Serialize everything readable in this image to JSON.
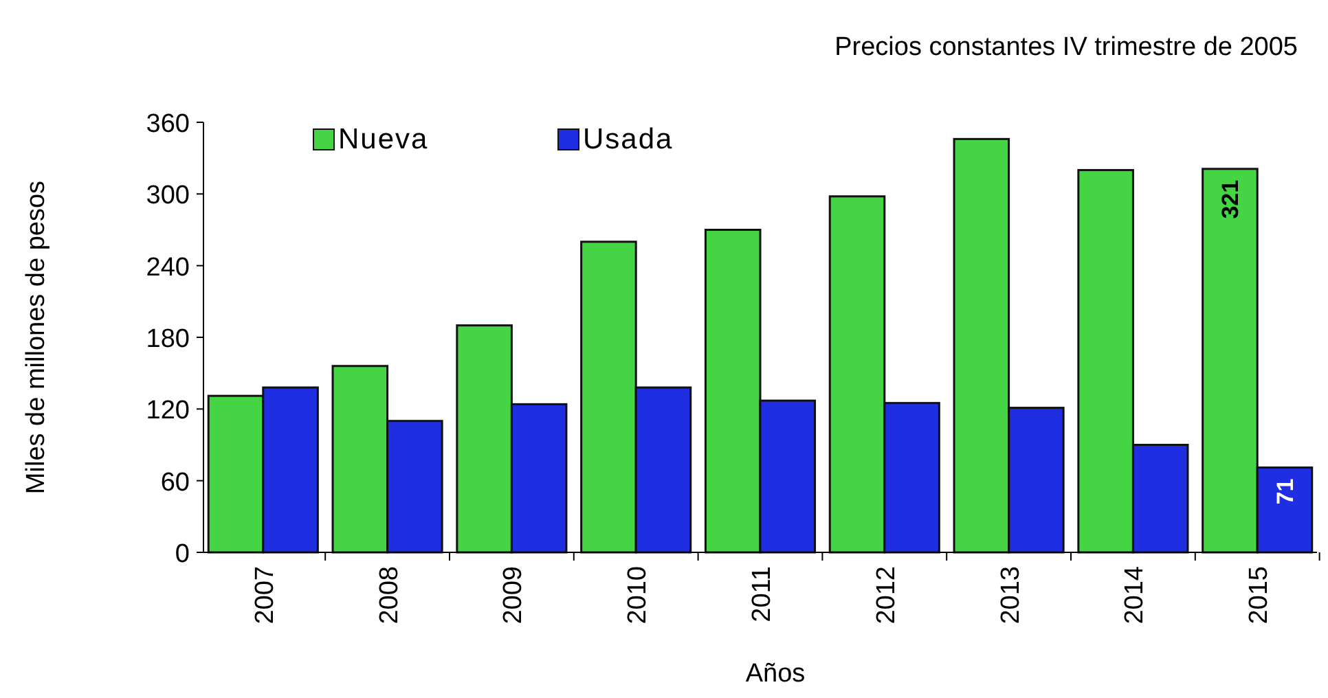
{
  "chart_data": {
    "type": "bar",
    "subtitle": "Precios constantes IV trimestre de 2005",
    "xlabel": "Años",
    "ylabel": "Miles de millones de pesos",
    "categories": [
      "2007",
      "2008",
      "2009",
      "2010",
      "2011",
      "2012",
      "2013",
      "2014",
      "2015"
    ],
    "series": [
      {
        "name": "Nueva",
        "color": "#44d444",
        "values": [
          131,
          156,
          190,
          260,
          270,
          298,
          346,
          320,
          321
        ],
        "value_labels": [
          null,
          null,
          null,
          null,
          null,
          null,
          null,
          null,
          "321"
        ]
      },
      {
        "name": "Usada",
        "color": "#1e2ee0",
        "values": [
          138,
          110,
          124,
          138,
          127,
          125,
          121,
          90,
          71
        ],
        "value_labels": [
          null,
          null,
          null,
          null,
          null,
          null,
          null,
          null,
          "71"
        ]
      }
    ],
    "ylim": [
      0,
      360
    ],
    "yticks": [
      0,
      60,
      120,
      180,
      240,
      300,
      360
    ],
    "legend": "top left",
    "grid": false
  }
}
